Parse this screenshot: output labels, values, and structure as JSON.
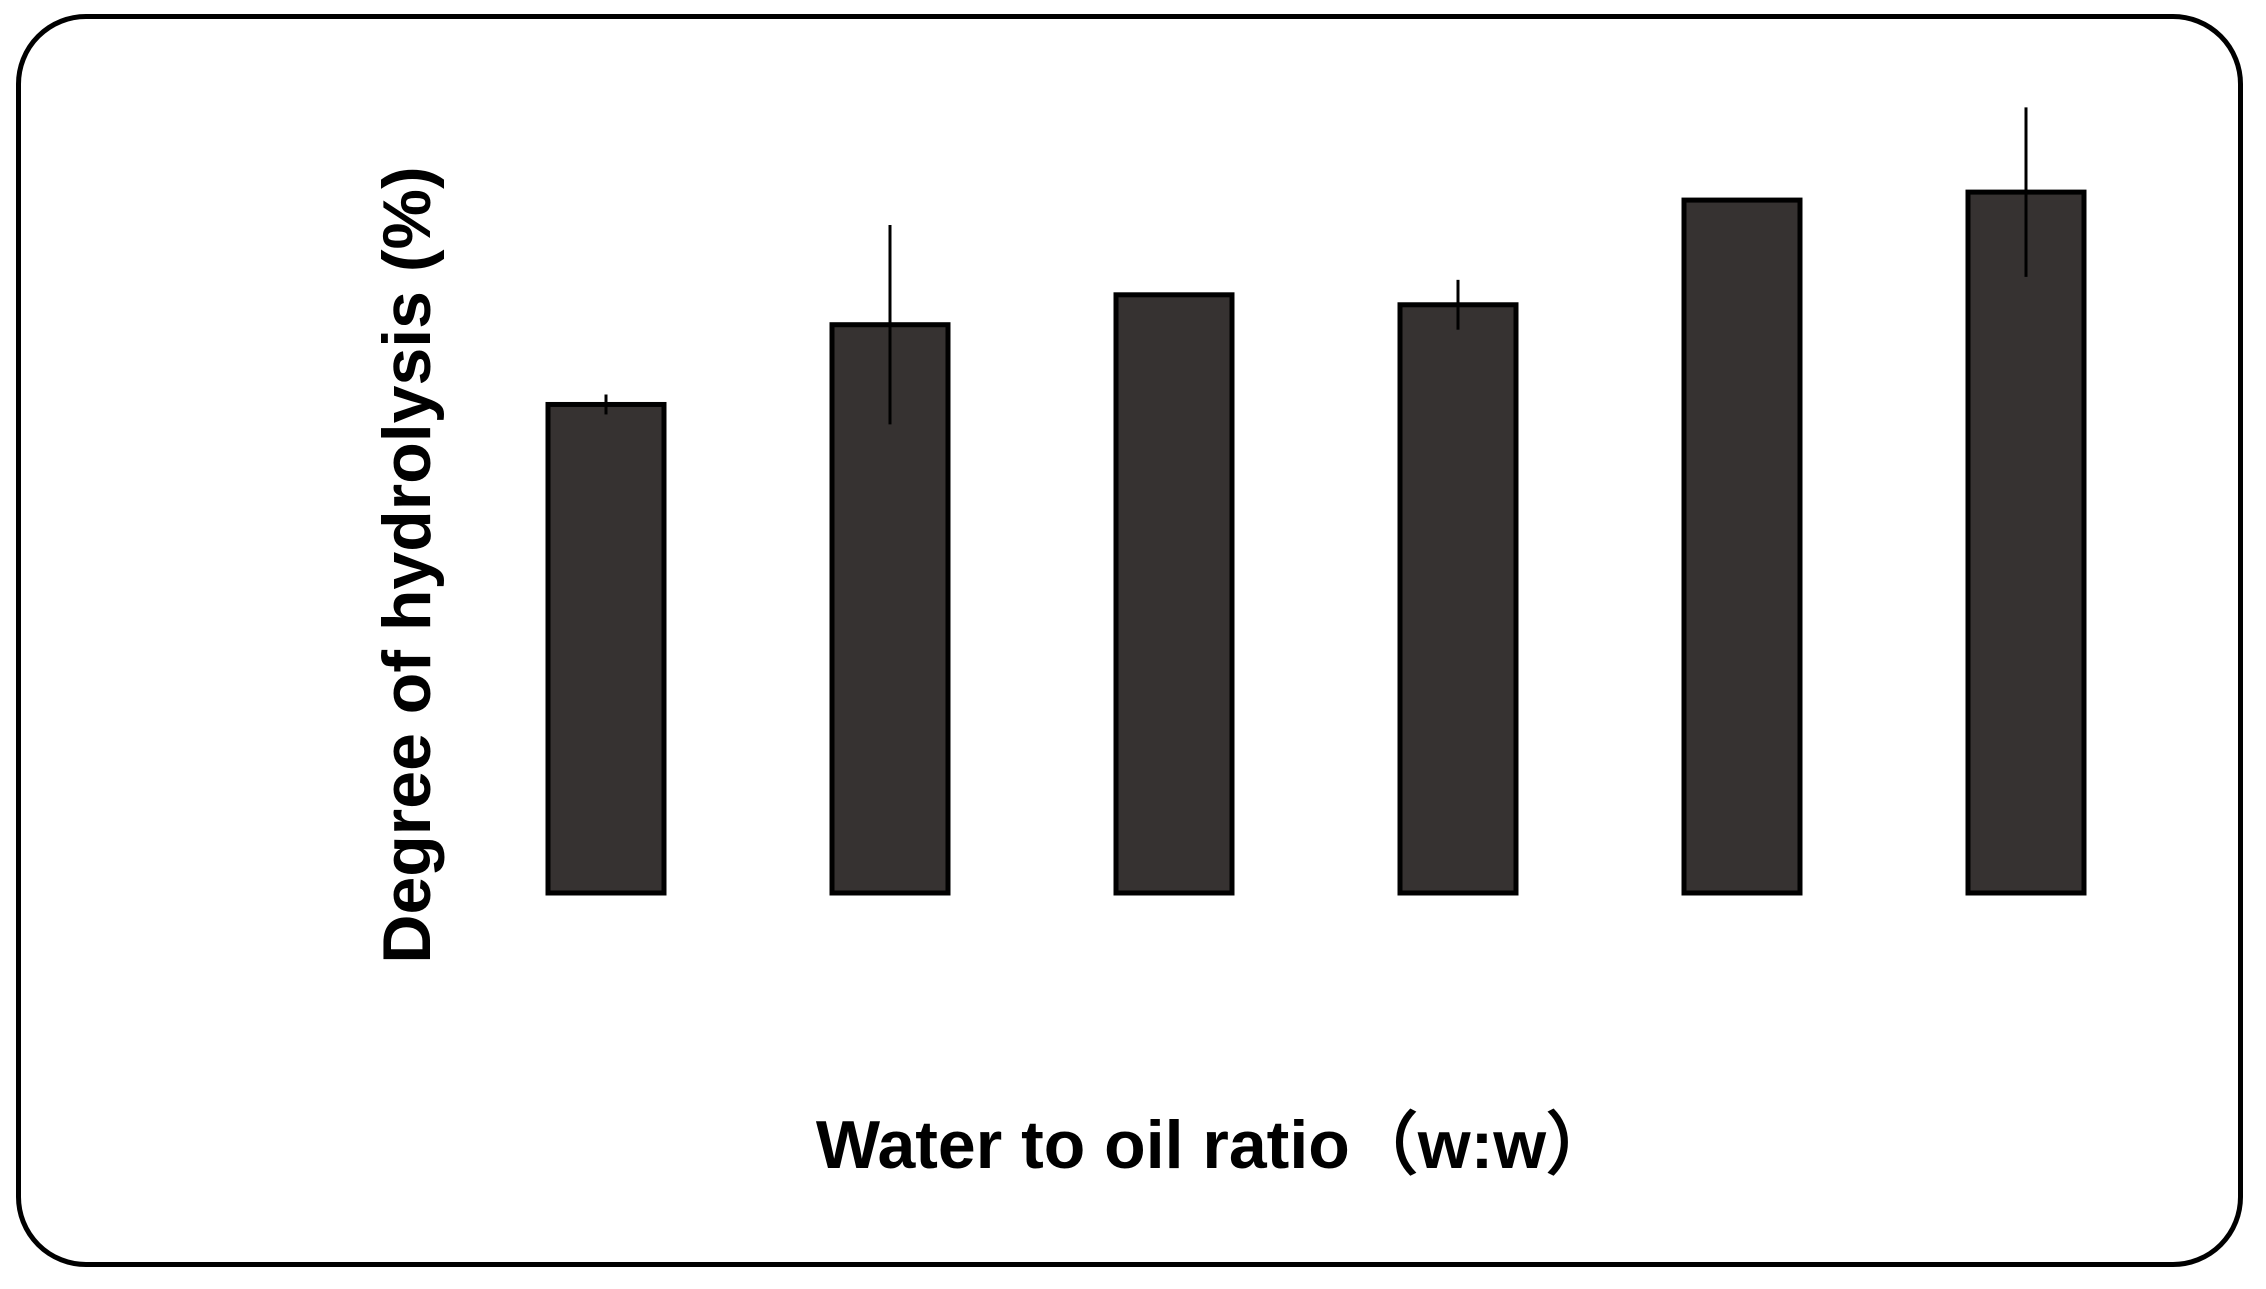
{
  "chart_data": {
    "type": "bar",
    "title": "",
    "xlabel": "Water to oil ratio（w:w）",
    "ylabel": "Degree of hydrolysis (%)",
    "categories": [
      "",
      "",
      "",
      "",
      "",
      ""
    ],
    "values": [
      49,
      57,
      60,
      59,
      69.5,
      70.3
    ],
    "errors": [
      1,
      10,
      0,
      2.5,
      0,
      8.5
    ],
    "ylim": [
      0,
      82
    ],
    "grid": false,
    "legend": "none",
    "colors": {
      "bar": "#363231",
      "edge": "#000000",
      "error": "#000000"
    }
  }
}
